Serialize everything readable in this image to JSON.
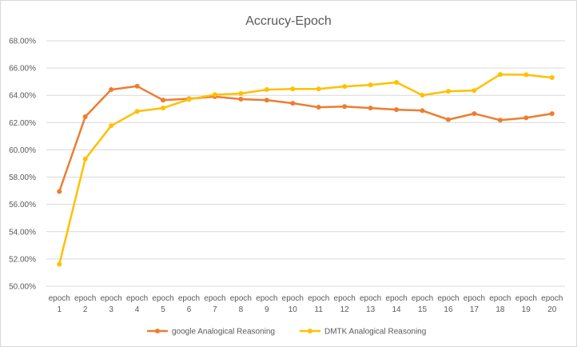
{
  "chart_data": {
    "type": "line",
    "title": "Accrucy-Epoch",
    "categories": [
      [
        "epoch",
        "1"
      ],
      [
        "epoch",
        "2"
      ],
      [
        "epoch",
        "3"
      ],
      [
        "epoch",
        "4"
      ],
      [
        "epoch",
        "5"
      ],
      [
        "epoch",
        "6"
      ],
      [
        "epoch",
        "7"
      ],
      [
        "epoch",
        "8"
      ],
      [
        "epoch",
        "9"
      ],
      [
        "epoch",
        "10"
      ],
      [
        "epoch",
        "11"
      ],
      [
        "epoch",
        "12"
      ],
      [
        "epoch",
        "13"
      ],
      [
        "epoch",
        "14"
      ],
      [
        "epoch",
        "15"
      ],
      [
        "epoch",
        "16"
      ],
      [
        "epoch",
        "17"
      ],
      [
        "epoch",
        "18"
      ],
      [
        "epoch",
        "19"
      ],
      [
        "epoch",
        "20"
      ]
    ],
    "ylim": [
      0.5,
      0.68
    ],
    "yticks": [
      0.5,
      0.52,
      0.54,
      0.56,
      0.58,
      0.6,
      0.62,
      0.64,
      0.66,
      0.68
    ],
    "ytick_labels": [
      "50.00%",
      "52.00%",
      "54.00%",
      "56.00%",
      "58.00%",
      "60.00%",
      "62.00%",
      "64.00%",
      "66.00%",
      "68.00%"
    ],
    "grid": true,
    "legend_position": "bottom",
    "series": [
      {
        "name": "google Analogical Reasoning",
        "color": "#ED7D31",
        "values": [
          0.5695,
          0.6243,
          0.6442,
          0.6467,
          0.6365,
          0.6375,
          0.639,
          0.6372,
          0.6365,
          0.6342,
          0.6313,
          0.6318,
          0.6307,
          0.6295,
          0.6288,
          0.6222,
          0.6266,
          0.6218,
          0.6235,
          0.6266
        ]
      },
      {
        "name": "DMTK Analogical Reasoning",
        "color": "#FFC000",
        "values": [
          0.5161,
          0.5933,
          0.6177,
          0.6282,
          0.6307,
          0.637,
          0.6405,
          0.6413,
          0.6442,
          0.6447,
          0.6447,
          0.6465,
          0.6476,
          0.6495,
          0.6401,
          0.643,
          0.6435,
          0.6553,
          0.6551,
          0.653
        ]
      }
    ]
  }
}
